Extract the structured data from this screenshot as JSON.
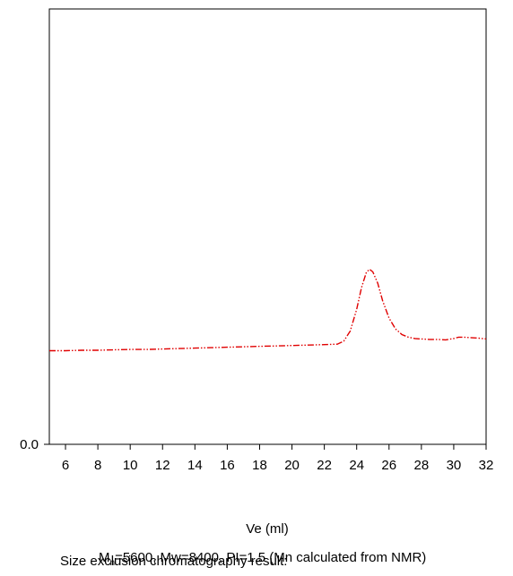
{
  "chart_data": {
    "type": "line",
    "title": "",
    "xlabel": "Ve (ml)",
    "ylabel": "",
    "xlim": [
      5,
      32
    ],
    "ylim": [
      0,
      1
    ],
    "x_ticks": [
      6,
      8,
      10,
      12,
      14,
      16,
      18,
      20,
      22,
      24,
      26,
      28,
      30,
      32
    ],
    "y_ticks": [
      0.0
    ],
    "y_tick_labels": [
      "0.0"
    ],
    "grid": false,
    "legend_caption": "Size exclusion chromatography result:",
    "legend_label": {
      "prefix": "M",
      "subscript": "n",
      "rest": "=5600, Mw=8400, PI=1.5 (Mn calculated from NMR)"
    },
    "series": [
      {
        "name": "Mn=5600, Mw=8400, PI=1.5 (Mn calculated from NMR)",
        "color": "#e00000",
        "line_style": "dash-dot-dot",
        "x": [
          5.0,
          6.0,
          7.0,
          8.0,
          9.0,
          10.0,
          11.0,
          12.0,
          13.0,
          14.0,
          15.0,
          16.0,
          17.0,
          18.0,
          19.0,
          20.0,
          21.0,
          22.0,
          22.8,
          23.2,
          23.6,
          24.0,
          24.3,
          24.6,
          24.8,
          25.0,
          25.3,
          25.6,
          26.0,
          26.4,
          26.8,
          27.2,
          27.6,
          28.0,
          28.5,
          29.0,
          29.5,
          30.0,
          30.3,
          30.6,
          31.0,
          31.5,
          32.0
        ],
        "y": [
          0.215,
          0.215,
          0.216,
          0.216,
          0.217,
          0.218,
          0.218,
          0.219,
          0.22,
          0.221,
          0.222,
          0.223,
          0.224,
          0.225,
          0.226,
          0.227,
          0.228,
          0.229,
          0.23,
          0.237,
          0.26,
          0.31,
          0.36,
          0.395,
          0.402,
          0.396,
          0.37,
          0.33,
          0.29,
          0.265,
          0.252,
          0.246,
          0.243,
          0.242,
          0.241,
          0.241,
          0.24,
          0.243,
          0.246,
          0.246,
          0.245,
          0.244,
          0.242
        ]
      }
    ]
  }
}
